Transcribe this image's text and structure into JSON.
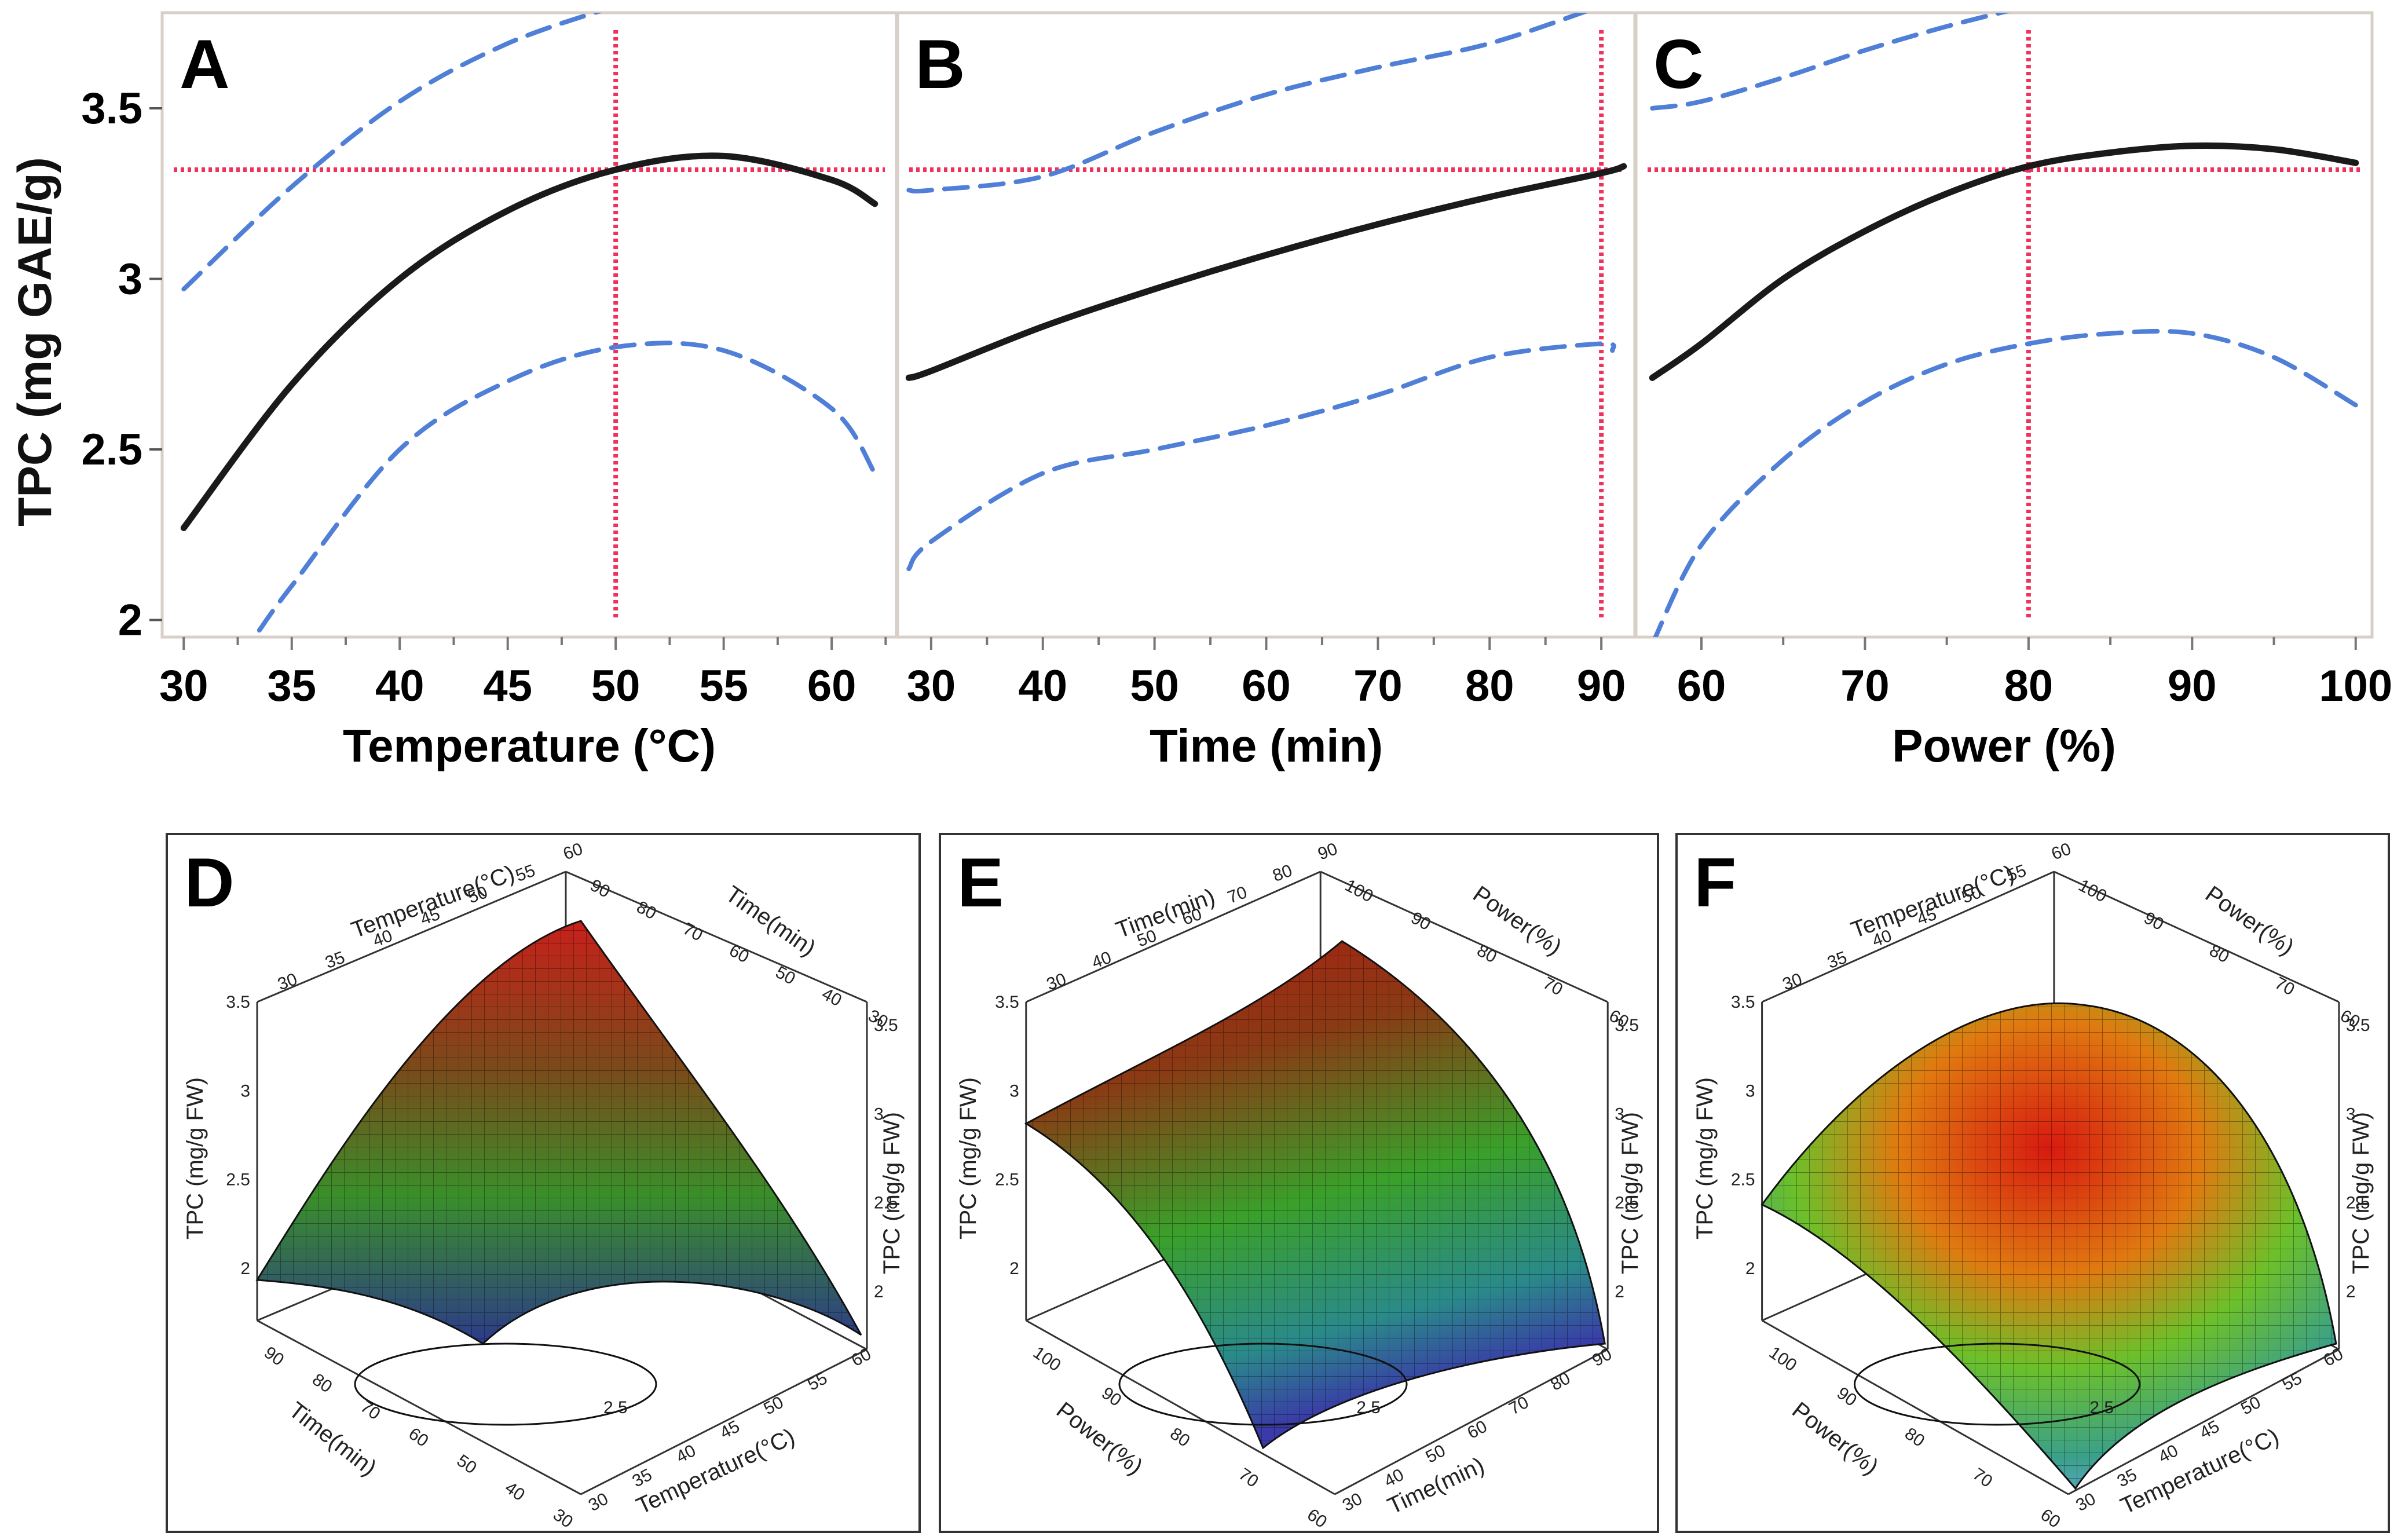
{
  "figure": {
    "ylabel": "TPC (mg GAE/g)"
  },
  "chart_data": [
    {
      "type": "line",
      "panel": "A",
      "xlabel": "Temperature (°C)",
      "ylabel": "TPC (mg GAE/g)",
      "xlim": [
        29,
        63
      ],
      "ylim": [
        1.95,
        3.78
      ],
      "xticks": [
        "30",
        "35",
        "40",
        "45",
        "50",
        "55",
        "60"
      ],
      "yticks": [
        "2",
        "2.5",
        "3",
        "3.5"
      ],
      "reference": {
        "x": 50,
        "y": 3.32
      },
      "series": [
        {
          "name": "prediction",
          "x": [
            30,
            35,
            40,
            45,
            50,
            55,
            60,
            62
          ],
          "values": [
            2.27,
            2.69,
            3.0,
            3.2,
            3.32,
            3.36,
            3.29,
            3.22
          ]
        },
        {
          "name": "upper CI",
          "x": [
            30,
            35,
            40,
            45,
            50
          ],
          "values": [
            2.97,
            3.27,
            3.52,
            3.69,
            3.8
          ]
        },
        {
          "name": "lower CI",
          "x": [
            33.5,
            35,
            40,
            45,
            50,
            55,
            60,
            62
          ],
          "values": [
            1.97,
            2.1,
            2.5,
            2.7,
            2.8,
            2.79,
            2.62,
            2.43
          ]
        }
      ]
    },
    {
      "type": "line",
      "panel": "B",
      "xlabel": "Time (min)",
      "ylabel": "TPC (mg GAE/g)",
      "xlim": [
        27,
        93
      ],
      "ylim": [
        1.95,
        3.78
      ],
      "xticks": [
        "30",
        "40",
        "50",
        "60",
        "70",
        "80",
        "90"
      ],
      "yticks": [
        "2",
        "2.5",
        "3",
        "3.5"
      ],
      "reference": {
        "x": 90,
        "y": 3.32
      },
      "series": [
        {
          "name": "prediction",
          "x": [
            28,
            30,
            40,
            50,
            60,
            70,
            80,
            90,
            92
          ],
          "values": [
            2.71,
            2.73,
            2.86,
            2.97,
            3.07,
            3.16,
            3.24,
            3.31,
            3.33
          ]
        },
        {
          "name": "upper CI",
          "x": [
            28,
            30,
            40,
            50,
            60,
            70,
            80,
            90
          ],
          "values": [
            3.26,
            3.26,
            3.3,
            3.43,
            3.54,
            3.62,
            3.69,
            3.8
          ]
        },
        {
          "name": "lower CI",
          "x": [
            28,
            30,
            40,
            50,
            60,
            70,
            80,
            90,
            91
          ],
          "values": [
            2.15,
            2.23,
            2.43,
            2.5,
            2.57,
            2.66,
            2.77,
            2.81,
            2.79
          ]
        }
      ]
    },
    {
      "type": "line",
      "panel": "C",
      "xlabel": "Power (%)",
      "ylabel": "TPC (mg GAE/g)",
      "xlim": [
        56,
        101
      ],
      "ylim": [
        1.95,
        3.78
      ],
      "xticks": [
        "60",
        "70",
        "80",
        "90",
        "100"
      ],
      "yticks": [
        "2",
        "2.5",
        "3",
        "3.5"
      ],
      "reference": {
        "x": 80,
        "y": 3.32
      },
      "series": [
        {
          "name": "prediction",
          "x": [
            57,
            60,
            65,
            70,
            75,
            80,
            85,
            90,
            95,
            100
          ],
          "values": [
            2.71,
            2.81,
            3.0,
            3.14,
            3.25,
            3.33,
            3.37,
            3.39,
            3.38,
            3.34
          ]
        },
        {
          "name": "upper CI",
          "x": [
            57,
            60,
            65,
            70,
            75,
            80
          ],
          "values": [
            3.5,
            3.52,
            3.59,
            3.67,
            3.74,
            3.8
          ]
        },
        {
          "name": "lower CI",
          "x": [
            57,
            60,
            65,
            70,
            75,
            80,
            85,
            90,
            95,
            100
          ],
          "values": [
            1.93,
            2.22,
            2.47,
            2.64,
            2.75,
            2.81,
            2.84,
            2.84,
            2.77,
            2.63
          ]
        }
      ]
    },
    {
      "type": "surface",
      "panel": "D",
      "x_axis": "Temperature(°C)",
      "y_axis": "Time(min)",
      "z_axis": "TPC (mg/g FW)",
      "x_ticks": [
        "30",
        "35",
        "40",
        "45",
        "50",
        "55",
        "60"
      ],
      "y_ticks": [
        "30",
        "40",
        "50",
        "60",
        "70",
        "80",
        "90"
      ],
      "z_ticks": [
        "2",
        "2.5",
        "3",
        "3.5"
      ],
      "contour_label": "2.5"
    },
    {
      "type": "surface",
      "panel": "E",
      "x_axis": "Time(min)",
      "y_axis": "Power(%)",
      "z_axis": "TPC (mg/g FW)",
      "x_ticks": [
        "30",
        "40",
        "50",
        "60",
        "70",
        "80",
        "90"
      ],
      "y_ticks": [
        "60",
        "70",
        "80",
        "90",
        "100"
      ],
      "z_ticks": [
        "2",
        "2.5",
        "3",
        "3.5"
      ],
      "contour_label": "2.5"
    },
    {
      "type": "surface",
      "panel": "F",
      "x_axis": "Temperature(°C)",
      "y_axis": "Power(%)",
      "z_axis": "TPC (mg/g FW)",
      "x_ticks": [
        "30",
        "35",
        "40",
        "45",
        "50",
        "55",
        "60"
      ],
      "y_ticks": [
        "60",
        "70",
        "80",
        "90",
        "100"
      ],
      "z_ticks": [
        "2",
        "2.5",
        "3",
        "3.5"
      ],
      "contour_label": "2.5"
    }
  ],
  "colors": {
    "prediction": "#1a1a1a",
    "confidence": "#4f7fd6",
    "reference": "#f0315c",
    "panel_bg": "#ffffff",
    "frame": "#d8cfc6",
    "surface_high": "#c0201a",
    "surface_mid": "#2e9b2e",
    "surface_low": "#3a4aa8"
  }
}
